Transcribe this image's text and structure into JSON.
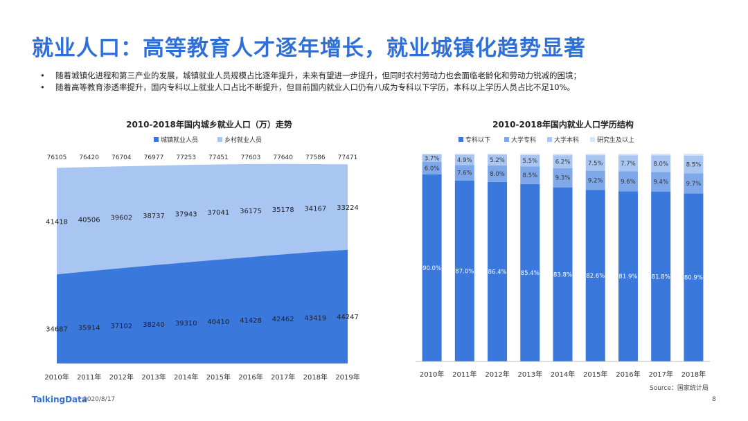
{
  "header": {
    "title": "就业人口：高等教育人才逐年增长，就业城镇化趋势显著"
  },
  "bullets": [
    "随着城镇化进程和第三产业的发展，城镇就业人员规模占比逐年提升，未来有望进一步提升，但同时农村劳动力也会面临老龄化和劳动力锐减的困境；",
    "随着高等教育渗透率提升，国内专科以上就业人口占比不断提升，但目前国内就业人口仍有八成为专科以下学历，本科以上学历人员占比不足10%。"
  ],
  "bullet_symbol": "•",
  "chart_data": [
    {
      "type": "area",
      "title": "2010-2018年国内城乡就业人口（万）走势",
      "categories": [
        "2010年",
        "2011年",
        "2012年",
        "2013年",
        "2014年",
        "2015年",
        "2016年",
        "2017年",
        "2018年",
        "2019年"
      ],
      "series": [
        {
          "name": "城镇就业人员",
          "color": "#3a78dc",
          "values": [
            34687,
            35914,
            37102,
            38240,
            39310,
            40410,
            41428,
            42462,
            43419,
            44247
          ]
        },
        {
          "name": "乡村就业人员",
          "color": "#a9c6f2",
          "values": [
            41418,
            40506,
            39602,
            38737,
            37943,
            37041,
            36175,
            35178,
            34167,
            33224
          ]
        }
      ],
      "totals": [
        76105,
        76420,
        76704,
        76977,
        77253,
        77451,
        77603,
        77640,
        77586,
        77471
      ],
      "ylim": [
        0,
        80000
      ],
      "stacked": true,
      "legend": "top"
    },
    {
      "type": "bar",
      "stacked": true,
      "title": "2010-2018年国内就业人口学历结构",
      "categories": [
        "2010年",
        "2011年",
        "2012年",
        "2013年",
        "2014年",
        "2015年",
        "2016年",
        "2017年",
        "2018年"
      ],
      "series": [
        {
          "name": "专科以下",
          "color": "#3a78dc",
          "values": [
            90.0,
            87.0,
            86.4,
            85.4,
            83.8,
            82.6,
            81.9,
            81.8,
            80.9
          ],
          "labels": [
            "90.0%",
            "87.0%",
            "86.4%",
            "85.4%",
            "83.8%",
            "82.6%",
            "81.9%",
            "81.8%",
            "80.9%"
          ]
        },
        {
          "name": "大学专科",
          "color": "#7fa8ea",
          "values": [
            6.0,
            7.6,
            8.0,
            8.5,
            9.3,
            9.2,
            9.6,
            9.4,
            9.7
          ],
          "labels": [
            "6.0%",
            "7.6%",
            "8.0%",
            "8.5%",
            "9.3%",
            "9.2%",
            "9.6%",
            "9.4%",
            "9.7%"
          ]
        },
        {
          "name": "大学本科",
          "color": "#a9c6f2",
          "values": [
            3.7,
            4.9,
            5.2,
            5.5,
            6.2,
            7.5,
            7.7,
            8.0,
            8.5
          ],
          "labels": [
            "3.7%",
            "4.9%",
            "5.2%",
            "5.5%",
            "6.2%",
            "7.5%",
            "7.7%",
            "8.0%",
            "8.5%"
          ]
        },
        {
          "name": "研究生及以上",
          "color": "#d6e4f8",
          "values": [
            0.3,
            0.5,
            0.4,
            0.6,
            0.7,
            0.7,
            0.8,
            0.8,
            0.9
          ],
          "labels": [
            "",
            "",
            "",
            "",
            "",
            "",
            "",
            "",
            ""
          ]
        }
      ],
      "ylim": [
        0,
        100
      ],
      "legend": "top",
      "source": "Source：国家统计局"
    }
  ],
  "footer": {
    "logo": "TalkingData",
    "date": "2020/8/17",
    "page": "8"
  }
}
